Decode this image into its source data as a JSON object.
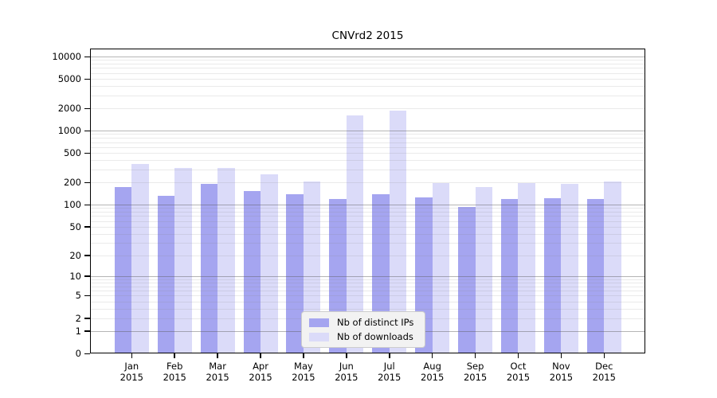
{
  "chart_data": {
    "type": "bar",
    "title": "CNVrd2 2015",
    "categories": [
      "Jan",
      "Feb",
      "Mar",
      "Apr",
      "May",
      "Jun",
      "Jul",
      "Aug",
      "Sep",
      "Oct",
      "Nov",
      "Dec"
    ],
    "category_year": "2015",
    "series": [
      {
        "name": "Nb of distinct IPs",
        "color": "#a5a5f0",
        "values": [
          175,
          132,
          190,
          154,
          138,
          120,
          139,
          127,
          92,
          119,
          123,
          120
        ]
      },
      {
        "name": "Nb of downloads",
        "color": "#dbdbf9",
        "values": [
          360,
          315,
          315,
          255,
          206,
          1620,
          1870,
          197,
          174,
          196,
          191,
          206
        ]
      }
    ],
    "y_ticks": [
      10000,
      5000,
      2000,
      1000,
      500,
      200,
      100,
      50,
      20,
      10,
      5,
      2,
      1,
      0
    ],
    "y_scale": "log10(1+x)",
    "y_max": 10000,
    "grid": "horizontal-log-minor",
    "legend_position": "inside-bottom-center",
    "colors": {
      "axis": "#000000",
      "decade_gridline": "rgba(90,90,90,0.45)",
      "minor_gridline": "rgba(128,128,128,0.17)",
      "legend_bg": "#f2f2f2",
      "legend_border": "#cccccc",
      "text": "#000000"
    }
  }
}
